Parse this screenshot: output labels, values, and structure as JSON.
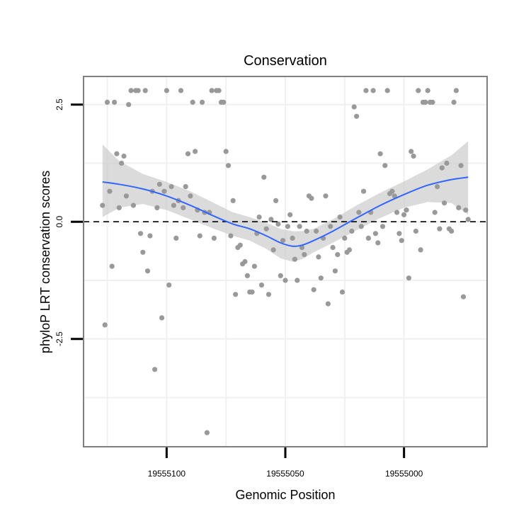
{
  "chart_data": {
    "type": "scatter",
    "title": "Conservation",
    "xlabel": "Genomic Position",
    "ylabel": "phyloP LRT conservation scores",
    "x_reversed": true,
    "xlim": [
      19555135,
      19554965
    ],
    "ylim": [
      -4.8,
      3.1
    ],
    "x_ticks": [
      19555100,
      19555050,
      19555000
    ],
    "x_tick_labels": [
      "19555100",
      "19555050",
      "19555000"
    ],
    "y_ticks": [
      -2.5,
      0.0,
      2.5
    ],
    "y_tick_labels": [
      "-2.5",
      "0.0",
      "2.5"
    ],
    "reference_line": {
      "y": 0,
      "style": "dashed",
      "color": "#000000"
    },
    "grid": true,
    "colors": {
      "points": "#999999",
      "smooth_line": "#3366ff",
      "confidence_band": "#cccccc",
      "panel_border": "#7f7f7f"
    },
    "points": [
      {
        "x": 19555127,
        "y": 0.35
      },
      {
        "x": 19555126,
        "y": -2.2
      },
      {
        "x": 19555125,
        "y": 2.55
      },
      {
        "x": 19555124,
        "y": 0.65
      },
      {
        "x": 19555123,
        "y": -0.95
      },
      {
        "x": 19555122,
        "y": 2.55
      },
      {
        "x": 19555121,
        "y": 1.45
      },
      {
        "x": 19555120,
        "y": 0.3
      },
      {
        "x": 19555119,
        "y": 1.25
      },
      {
        "x": 19555118,
        "y": 1.4
      },
      {
        "x": 19555117,
        "y": 0.55
      },
      {
        "x": 19555116,
        "y": 2.5
      },
      {
        "x": 19555115,
        "y": 2.8
      },
      {
        "x": 19555114,
        "y": 0.35
      },
      {
        "x": 19555113,
        "y": 2.8
      },
      {
        "x": 19555112,
        "y": 2.8
      },
      {
        "x": 19555111,
        "y": -0.25
      },
      {
        "x": 19555110,
        "y": -0.65
      },
      {
        "x": 19555109,
        "y": 2.8
      },
      {
        "x": 19555108,
        "y": -1.05
      },
      {
        "x": 19555107,
        "y": -0.3
      },
      {
        "x": 19555106,
        "y": 0.65
      },
      {
        "x": 19555105,
        "y": -3.15
      },
      {
        "x": 19555104,
        "y": 0.3
      },
      {
        "x": 19555103,
        "y": 0.8
      },
      {
        "x": 19555102,
        "y": -2.05
      },
      {
        "x": 19555101,
        "y": 0.65
      },
      {
        "x": 19555100,
        "y": 2.8
      },
      {
        "x": 19555099,
        "y": -1.35
      },
      {
        "x": 19555098,
        "y": 0.75
      },
      {
        "x": 19555097,
        "y": 0.35
      },
      {
        "x": 19555096,
        "y": -0.35
      },
      {
        "x": 19555095,
        "y": 0.45
      },
      {
        "x": 19555094,
        "y": 2.8
      },
      {
        "x": 19555093,
        "y": 0.3
      },
      {
        "x": 19555092,
        "y": 0.75
      },
      {
        "x": 19555091,
        "y": 1.45
      },
      {
        "x": 19555090,
        "y": 0.55
      },
      {
        "x": 19555089,
        "y": 2.55
      },
      {
        "x": 19555088,
        "y": 1.5
      },
      {
        "x": 19555087,
        "y": 0.25
      },
      {
        "x": 19555086,
        "y": -0.3
      },
      {
        "x": 19555085,
        "y": 2.55
      },
      {
        "x": 19555084,
        "y": 0.2
      },
      {
        "x": 19555083,
        "y": -4.5
      },
      {
        "x": 19555082,
        "y": 0.2
      },
      {
        "x": 19555081,
        "y": 2.8
      },
      {
        "x": 19555080,
        "y": -0.35
      },
      {
        "x": 19555079,
        "y": 2.8
      },
      {
        "x": 19555078,
        "y": 2.8
      },
      {
        "x": 19555077,
        "y": 2.55
      },
      {
        "x": 19555076,
        "y": 2.55
      },
      {
        "x": 19555075,
        "y": 1.5
      },
      {
        "x": 19555074,
        "y": 1.2
      },
      {
        "x": 19555073,
        "y": -0.3
      },
      {
        "x": 19555072,
        "y": 0.45
      },
      {
        "x": 19555071,
        "y": -1.55
      },
      {
        "x": 19555070,
        "y": -0.55
      },
      {
        "x": 19555069,
        "y": -0.5
      },
      {
        "x": 19555068,
        "y": -0.9
      },
      {
        "x": 19555067,
        "y": -0.85
      },
      {
        "x": 19555066,
        "y": -1.15
      },
      {
        "x": 19555065,
        "y": -1.5
      },
      {
        "x": 19555064,
        "y": -1.5
      },
      {
        "x": 19555063,
        "y": -0.95
      },
      {
        "x": 19555062,
        "y": -0.25
      },
      {
        "x": 19555061,
        "y": 0.1
      },
      {
        "x": 19555060,
        "y": -1.35
      },
      {
        "x": 19555059,
        "y": 0.95
      },
      {
        "x": 19555058,
        "y": -0.15
      },
      {
        "x": 19555057,
        "y": -1.55
      },
      {
        "x": 19555056,
        "y": 0.05
      },
      {
        "x": 19555055,
        "y": -0.6
      },
      {
        "x": 19555054,
        "y": 0.45
      },
      {
        "x": 19555053,
        "y": -0.05
      },
      {
        "x": 19555052,
        "y": -1.15
      },
      {
        "x": 19555051,
        "y": -0.4
      },
      {
        "x": 19555050,
        "y": -1.25
      },
      {
        "x": 19555049,
        "y": -0.1
      },
      {
        "x": 19555048,
        "y": 0.15
      },
      {
        "x": 19555047,
        "y": -0.35
      },
      {
        "x": 19555046,
        "y": -0.8
      },
      {
        "x": 19555045,
        "y": -1.25
      },
      {
        "x": 19555044,
        "y": -0.1
      },
      {
        "x": 19555043,
        "y": -0.55
      },
      {
        "x": 19555042,
        "y": -0.7
      },
      {
        "x": 19555041,
        "y": -0.2
      },
      {
        "x": 19555040,
        "y": 0.55
      },
      {
        "x": 19555039,
        "y": 0.5
      },
      {
        "x": 19555038,
        "y": -1.45
      },
      {
        "x": 19555037,
        "y": -0.2
      },
      {
        "x": 19555036,
        "y": -0.75
      },
      {
        "x": 19555035,
        "y": -1.2
      },
      {
        "x": 19555034,
        "y": -0.35
      },
      {
        "x": 19555033,
        "y": 0.55
      },
      {
        "x": 19555032,
        "y": -1.75
      },
      {
        "x": 19555031,
        "y": -0.1
      },
      {
        "x": 19555030,
        "y": -0.55
      },
      {
        "x": 19555029,
        "y": -1.05
      },
      {
        "x": 19555028,
        "y": -0.7
      },
      {
        "x": 19555027,
        "y": 0.1
      },
      {
        "x": 19555026,
        "y": -1.5
      },
      {
        "x": 19555025,
        "y": -0.35
      },
      {
        "x": 19555024,
        "y": -0.65
      },
      {
        "x": 19555023,
        "y": -0.6
      },
      {
        "x": 19555022,
        "y": -0.2
      },
      {
        "x": 19555021,
        "y": 2.45
      },
      {
        "x": 19555020,
        "y": 2.25
      },
      {
        "x": 19555019,
        "y": 0.2
      },
      {
        "x": 19555018,
        "y": -0.1
      },
      {
        "x": 19555017,
        "y": 0.65
      },
      {
        "x": 19555016,
        "y": 2.8
      },
      {
        "x": 19555015,
        "y": -0.35
      },
      {
        "x": 19555014,
        "y": 0.2
      },
      {
        "x": 19555013,
        "y": 2.8
      },
      {
        "x": 19555012,
        "y": -0.25
      },
      {
        "x": 19555011,
        "y": -0.45
      },
      {
        "x": 19555010,
        "y": 1.45
      },
      {
        "x": 19555009,
        "y": -0.1
      },
      {
        "x": 19555008,
        "y": 1.2
      },
      {
        "x": 19555007,
        "y": 2.8
      },
      {
        "x": 19555006,
        "y": 0.6
      },
      {
        "x": 19555005,
        "y": 0.65
      },
      {
        "x": 19555004,
        "y": 0.55
      },
      {
        "x": 19555003,
        "y": 0.2
      },
      {
        "x": 19555002,
        "y": -0.25
      },
      {
        "x": 19555001,
        "y": -0.4
      },
      {
        "x": 19555000,
        "y": 0.15
      },
      {
        "x": 19554999,
        "y": 0.25
      },
      {
        "x": 19554998,
        "y": -1.2
      },
      {
        "x": 19554997,
        "y": 1.5
      },
      {
        "x": 19554996,
        "y": 1.4
      },
      {
        "x": 19554995,
        "y": -0.2
      },
      {
        "x": 19554994,
        "y": 2.8
      },
      {
        "x": 19554993,
        "y": -0.6
      },
      {
        "x": 19554992,
        "y": 2.55
      },
      {
        "x": 19554991,
        "y": 2.55
      },
      {
        "x": 19554990,
        "y": 2.8
      },
      {
        "x": 19554989,
        "y": 2.55
      },
      {
        "x": 19554988,
        "y": 2.55
      },
      {
        "x": 19554987,
        "y": 0.2
      },
      {
        "x": 19554986,
        "y": 0.75
      },
      {
        "x": 19554985,
        "y": -0.15
      },
      {
        "x": 19554984,
        "y": 1.15
      },
      {
        "x": 19554983,
        "y": 0.4
      },
      {
        "x": 19554982,
        "y": 1.25
      },
      {
        "x": 19554981,
        "y": -0.15
      },
      {
        "x": 19554980,
        "y": -0.2
      },
      {
        "x": 19554979,
        "y": 2.55
      },
      {
        "x": 19554978,
        "y": 2.8
      },
      {
        "x": 19554977,
        "y": 0.3
      },
      {
        "x": 19554976,
        "y": 1.2
      },
      {
        "x": 19554975,
        "y": -1.6
      },
      {
        "x": 19554974,
        "y": 0.25
      },
      {
        "x": 19554973,
        "y": 0.05
      }
    ],
    "smooth": {
      "x": [
        19555127,
        19555120,
        19555110,
        19555100,
        19555090,
        19555080,
        19555072,
        19555065,
        19555058,
        19555052,
        19555047,
        19555043,
        19555038,
        19555030,
        19555020,
        19555010,
        19555000,
        19554990,
        19554980,
        19554973
      ],
      "y": [
        0.85,
        0.8,
        0.7,
        0.55,
        0.35,
        0.12,
        -0.05,
        -0.15,
        -0.3,
        -0.45,
        -0.52,
        -0.5,
        -0.4,
        -0.2,
        0.08,
        0.35,
        0.58,
        0.78,
        0.9,
        0.95
      ],
      "lower": [
        0.1,
        0.3,
        0.38,
        0.25,
        0.05,
        -0.15,
        -0.3,
        -0.4,
        -0.58,
        -0.78,
        -0.85,
        -0.8,
        -0.65,
        -0.45,
        -0.18,
        0.08,
        0.3,
        0.42,
        0.4,
        0.15
      ],
      "upper": [
        1.65,
        1.3,
        1.02,
        0.85,
        0.65,
        0.4,
        0.2,
        0.1,
        -0.02,
        -0.15,
        -0.2,
        -0.2,
        -0.15,
        0.05,
        0.35,
        0.62,
        0.86,
        1.12,
        1.42,
        1.72
      ]
    }
  }
}
